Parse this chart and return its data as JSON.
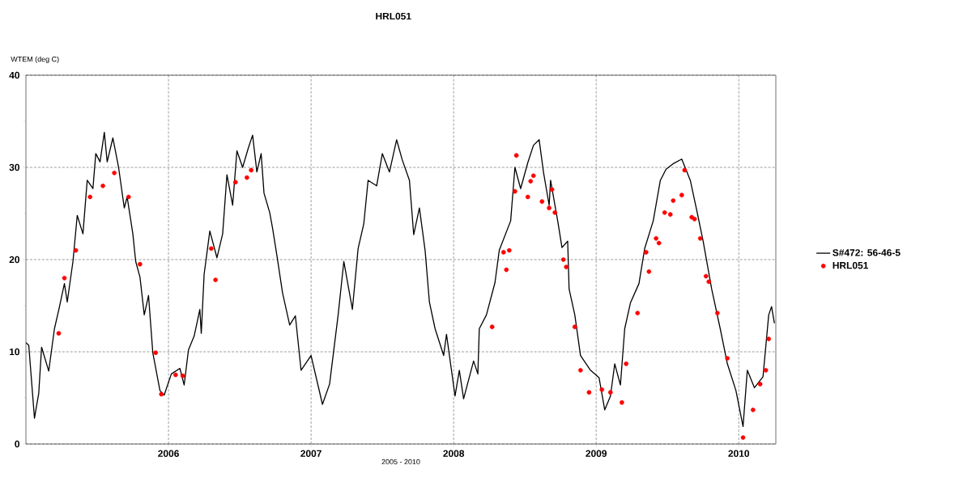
{
  "chart_data": {
    "type": "line",
    "title": "HRL051",
    "xlabel": "2005 - 2010",
    "ylabel": "WTEM (deg C)",
    "xlim": [
      2005,
      2010.26
    ],
    "xticks": [
      2006,
      2007,
      2008,
      2009,
      2010
    ],
    "ylim": [
      0,
      40
    ],
    "yticks": [
      0,
      {
        "value": 5,
        "label": null
      },
      10,
      {
        "value": 15,
        "label": null
      },
      20,
      {
        "value": 25,
        "label": null
      },
      30,
      {
        "value": 35,
        "label": null
      },
      40
    ],
    "grid": true,
    "legend": "right",
    "series": [
      {
        "name": "S#472: 56-46-5",
        "color": "#000000",
        "line_style": "solid",
        "x": [
          2005.0,
          2005.02,
          2005.06,
          2005.09,
          2005.11,
          2005.16,
          2005.2,
          2005.23,
          2005.27,
          2005.29,
          2005.33,
          2005.36,
          2005.4,
          2005.43,
          2005.47,
          2005.49,
          2005.52,
          2005.55,
          2005.57,
          2005.61,
          2005.65,
          2005.69,
          2005.71,
          2005.75,
          2005.77,
          2005.8,
          2005.83,
          2005.86,
          2005.89,
          2005.94,
          2005.97,
          2006.02,
          2006.08,
          2006.11,
          2006.14,
          2006.18,
          2006.22,
          2006.23,
          2006.25,
          2006.29,
          2006.34,
          2006.38,
          2006.41,
          2006.45,
          2006.48,
          2006.52,
          2006.56,
          2006.59,
          2006.62,
          2006.65,
          2006.67,
          2006.71,
          2006.73,
          2006.76,
          2006.8,
          2006.85,
          2006.89,
          2006.93,
          2007.0,
          2007.08,
          2007.13,
          2007.19,
          2007.23,
          2007.29,
          2007.33,
          2007.37,
          2007.4,
          2007.46,
          2007.5,
          2007.55,
          2007.6,
          2007.64,
          2007.69,
          2007.72,
          2007.76,
          2007.8,
          2007.83,
          2007.87,
          2007.93,
          2007.95,
          2008.01,
          2008.04,
          2008.07,
          2008.14,
          2008.17,
          2008.18,
          2008.23,
          2008.29,
          2008.32,
          2008.4,
          2008.43,
          2008.47,
          2008.52,
          2008.56,
          2008.6,
          2008.63,
          2008.67,
          2008.68,
          2008.73,
          2008.76,
          2008.8,
          2008.81,
          2008.85,
          2008.89,
          2008.96,
          2009.02,
          2009.06,
          2009.1,
          2009.13,
          2009.17,
          2009.2,
          2009.24,
          2009.3,
          2009.34,
          2009.4,
          2009.45,
          2009.49,
          2009.54,
          2009.6,
          2009.66,
          2009.71,
          2009.75,
          2009.81,
          2009.87,
          2009.92,
          2009.98,
          2010.03,
          2010.06,
          2010.11,
          2010.17,
          2010.21,
          2010.23,
          2010.25
        ],
        "values": [
          11.0,
          10.7,
          2.8,
          5.5,
          10.5,
          7.9,
          12.5,
          14.5,
          17.4,
          15.4,
          19.8,
          24.8,
          22.8,
          28.6,
          27.7,
          31.5,
          30.6,
          33.8,
          30.6,
          33.2,
          30.0,
          25.6,
          26.8,
          22.8,
          19.8,
          18.1,
          14.0,
          16.1,
          9.9,
          5.8,
          5.3,
          7.6,
          8.2,
          6.4,
          10.2,
          11.7,
          14.6,
          12.0,
          18.4,
          23.1,
          20.2,
          22.8,
          29.2,
          25.9,
          31.8,
          30.0,
          32.1,
          33.5,
          29.5,
          31.5,
          27.2,
          25.1,
          23.4,
          20.5,
          16.4,
          12.9,
          13.9,
          8.0,
          9.6,
          4.3,
          6.5,
          14.0,
          19.8,
          14.6,
          21.2,
          23.9,
          28.6,
          28.0,
          31.5,
          29.5,
          33.0,
          30.8,
          28.6,
          22.7,
          25.6,
          21.0,
          15.4,
          12.5,
          9.6,
          11.9,
          5.2,
          8.0,
          4.9,
          9.0,
          7.6,
          12.5,
          14.0,
          17.5,
          21.0,
          24.2,
          30.0,
          27.7,
          30.5,
          32.4,
          33.0,
          29.5,
          25.9,
          28.6,
          24.2,
          21.3,
          22.0,
          16.8,
          14.0,
          9.6,
          8.0,
          7.2,
          3.7,
          5.2,
          8.7,
          6.4,
          12.5,
          15.3,
          17.4,
          21.2,
          24.2,
          28.6,
          29.8,
          30.4,
          30.9,
          28.6,
          25.0,
          22.0,
          16.8,
          12.5,
          8.7,
          5.8,
          1.9,
          8.0,
          6.1,
          7.3,
          14.0,
          14.9,
          13.1
        ]
      },
      {
        "name": "HRL051",
        "type": "scatter",
        "color": "#ff0000",
        "x": [
          2005.23,
          2005.27,
          2005.35,
          2005.45,
          2005.54,
          2005.62,
          2005.72,
          2005.8,
          2005.91,
          2005.95,
          2006.05,
          2006.1,
          2006.3,
          2006.33,
          2006.47,
          2006.55,
          2006.58,
          2008.27,
          2008.35,
          2008.37,
          2008.39,
          2008.43,
          2008.44,
          2008.52,
          2008.54,
          2008.56,
          2008.62,
          2008.67,
          2008.69,
          2008.71,
          2008.77,
          2008.79,
          2008.85,
          2008.89,
          2008.95,
          2009.04,
          2009.1,
          2009.18,
          2009.21,
          2009.29,
          2009.35,
          2009.37,
          2009.42,
          2009.44,
          2009.48,
          2009.52,
          2009.54,
          2009.6,
          2009.62,
          2009.67,
          2009.69,
          2009.73,
          2009.77,
          2009.79,
          2009.85,
          2009.92,
          2010.03,
          2010.1,
          2010.15,
          2010.19,
          2010.21
        ],
        "values": [
          12.0,
          18.0,
          21.0,
          26.8,
          28.0,
          29.4,
          26.8,
          19.5,
          9.9,
          5.4,
          7.5,
          7.4,
          21.2,
          17.8,
          28.4,
          28.9,
          29.7,
          12.7,
          20.8,
          18.9,
          21.0,
          27.4,
          31.3,
          26.8,
          28.5,
          29.1,
          26.3,
          25.6,
          27.6,
          25.1,
          20.0,
          19.2,
          12.7,
          8.0,
          5.6,
          5.9,
          5.6,
          4.5,
          8.7,
          14.2,
          20.8,
          18.7,
          22.3,
          21.8,
          25.1,
          24.9,
          26.4,
          27.0,
          29.7,
          24.6,
          24.4,
          22.3,
          18.2,
          17.6,
          14.2,
          9.3,
          0.7,
          3.7,
          6.5,
          8.0,
          11.4
        ]
      }
    ]
  }
}
